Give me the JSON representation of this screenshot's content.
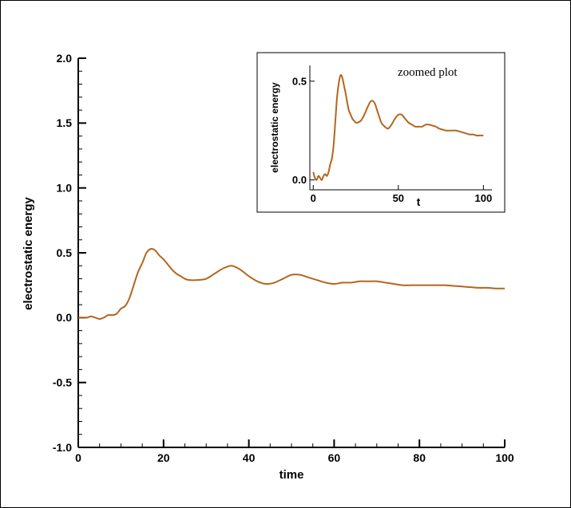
{
  "chart_data": [
    {
      "type": "line",
      "title": "",
      "xlabel": "time",
      "ylabel": "electrostatic energy",
      "xlim": [
        0,
        100
      ],
      "ylim": [
        -1.0,
        2.0
      ],
      "x_ticks": [
        "0",
        "20",
        "40",
        "60",
        "80",
        "100"
      ],
      "y_ticks": [
        "-1.0",
        "-0.5",
        "0.0",
        "0.5",
        "1.0",
        "1.5",
        "2.0"
      ],
      "grid": false,
      "color": "#b5651d",
      "series": [
        {
          "x": [
            0,
            1,
            2,
            3,
            4,
            5,
            6,
            7,
            8,
            9,
            10,
            11,
            12,
            13,
            14,
            15,
            16,
            17,
            18,
            19,
            20,
            21,
            22,
            23,
            24,
            25,
            26,
            28,
            30,
            32,
            34,
            36,
            38,
            40,
            42,
            44,
            46,
            48,
            50,
            52,
            54,
            56,
            58,
            60,
            62,
            64,
            66,
            68,
            70,
            72,
            74,
            76,
            78,
            80,
            82,
            84,
            86,
            88,
            90,
            92,
            94,
            96,
            98,
            100
          ],
          "y": [
            0.0,
            0.0,
            0.0,
            0.01,
            0.0,
            -0.01,
            0.0,
            0.02,
            0.02,
            0.03,
            0.07,
            0.09,
            0.15,
            0.25,
            0.35,
            0.42,
            0.5,
            0.53,
            0.52,
            0.48,
            0.45,
            0.41,
            0.37,
            0.34,
            0.32,
            0.3,
            0.29,
            0.29,
            0.3,
            0.34,
            0.38,
            0.4,
            0.37,
            0.32,
            0.28,
            0.26,
            0.27,
            0.3,
            0.33,
            0.33,
            0.31,
            0.29,
            0.27,
            0.26,
            0.27,
            0.27,
            0.28,
            0.28,
            0.28,
            0.27,
            0.26,
            0.25,
            0.25,
            0.25,
            0.25,
            0.25,
            0.25,
            0.245,
            0.24,
            0.235,
            0.23,
            0.23,
            0.225,
            0.225
          ]
        }
      ]
    },
    {
      "type": "line",
      "title": "zoomed plot",
      "xlabel": "t",
      "ylabel": "electrostatic energy",
      "xlim": [
        -2,
        105
      ],
      "ylim": [
        -0.05,
        0.58
      ],
      "x_ticks": [
        "0",
        "50",
        "100"
      ],
      "y_ticks": [
        "0.0",
        "0.5"
      ],
      "grid": false,
      "color": "#b5651d",
      "series": [
        {
          "x": [
            0,
            1,
            2,
            3,
            4,
            5,
            6,
            7,
            8,
            9,
            10,
            11,
            12,
            13,
            14,
            15,
            16,
            17,
            18,
            19,
            20,
            21,
            22,
            23,
            24,
            25,
            26,
            28,
            30,
            32,
            34,
            36,
            38,
            40,
            42,
            44,
            46,
            48,
            50,
            52,
            54,
            56,
            58,
            60,
            62,
            64,
            66,
            68,
            70,
            72,
            74,
            76,
            78,
            80,
            82,
            84,
            86,
            88,
            90,
            92,
            94,
            96,
            98,
            100
          ],
          "y": [
            0.04,
            0.01,
            0.0,
            0.02,
            0.01,
            0.0,
            0.02,
            0.03,
            0.02,
            0.04,
            0.08,
            0.11,
            0.18,
            0.3,
            0.42,
            0.49,
            0.53,
            0.52,
            0.48,
            0.44,
            0.39,
            0.35,
            0.33,
            0.31,
            0.3,
            0.29,
            0.29,
            0.3,
            0.33,
            0.37,
            0.4,
            0.39,
            0.34,
            0.29,
            0.27,
            0.26,
            0.28,
            0.31,
            0.33,
            0.33,
            0.31,
            0.29,
            0.28,
            0.27,
            0.27,
            0.27,
            0.28,
            0.28,
            0.275,
            0.27,
            0.26,
            0.255,
            0.25,
            0.25,
            0.25,
            0.25,
            0.245,
            0.24,
            0.235,
            0.23,
            0.23,
            0.225,
            0.225,
            0.225
          ]
        }
      ]
    }
  ]
}
